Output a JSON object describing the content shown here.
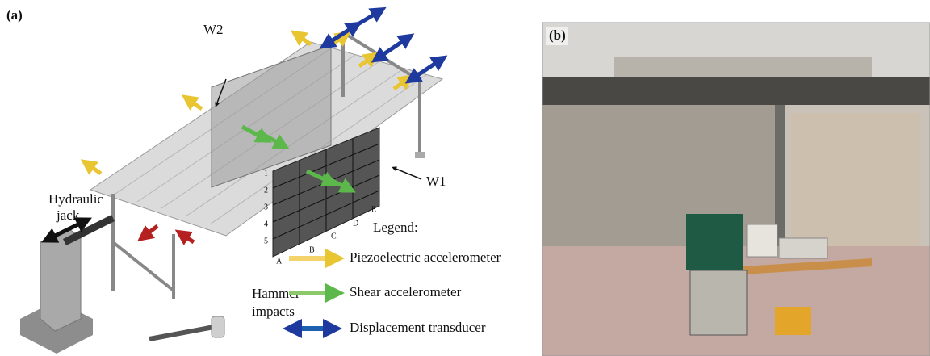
{
  "panel_a": {
    "label": "(a)",
    "walls": [
      "W2",
      "W1"
    ],
    "jack": [
      "Hydraulic",
      "jack"
    ],
    "hammer": [
      "Hammer",
      "impacts"
    ],
    "row_labels": [
      "1",
      "2",
      "3",
      "4",
      "5"
    ],
    "column_labels": [
      "A",
      "B",
      "C",
      "D",
      "E"
    ],
    "legend": {
      "title": "Legend:",
      "items": [
        "Piezoelectric accelerometer",
        "Shear accelerometer",
        "Displacement transducer"
      ]
    }
  },
  "panel_b": {
    "label": "(b)"
  }
}
